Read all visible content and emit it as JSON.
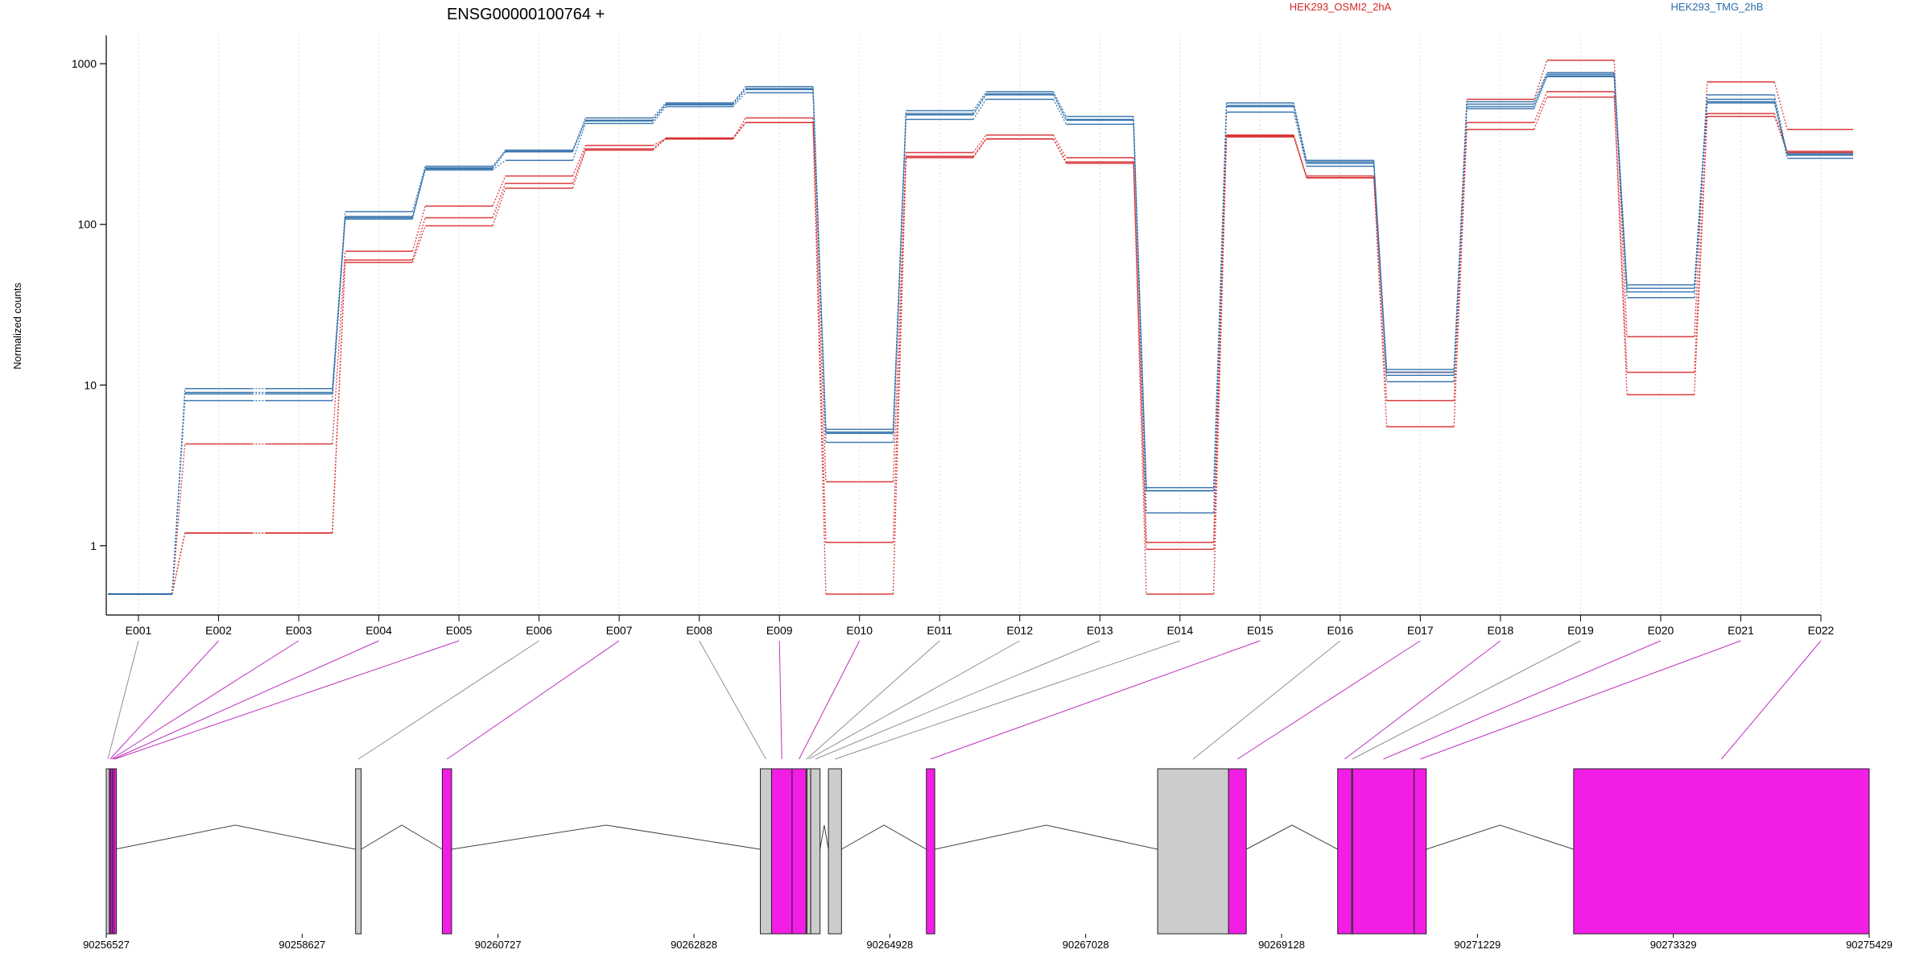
{
  "chart_data": {
    "type": "line",
    "title": "ENSG00000100764 +",
    "ylabel": "Normalized counts",
    "yscale": "log",
    "ylim": [
      0.5,
      1500
    ],
    "yticks": [
      1,
      10,
      100,
      1000
    ],
    "ytick_labels": [
      "1",
      "10",
      "100",
      "1000"
    ],
    "grid": "vertical-dotted",
    "legend_placement": "top",
    "categories": [
      "E001",
      "E002",
      "E003",
      "E004",
      "E005",
      "E006",
      "E007",
      "E008",
      "E009",
      "E010",
      "E011",
      "E012",
      "E013",
      "E014",
      "E015",
      "E016",
      "E017",
      "E018",
      "E019",
      "E020",
      "E021",
      "E022"
    ],
    "groups": [
      {
        "name": "HEK293_OSMI2_2hA",
        "color": "#d62728"
      },
      {
        "name": "HEK293_TMG_2hB",
        "color": "#2b6ca8"
      }
    ],
    "series": [
      {
        "group": 0,
        "values": [
          0.5,
          4.3,
          4.3,
          68,
          130,
          200,
          310,
          340,
          460,
          2.5,
          280,
          360,
          260,
          1.05,
          360,
          200,
          12,
          600,
          1050,
          20,
          770,
          390
        ]
      },
      {
        "group": 0,
        "values": [
          0.5,
          1.2,
          1.2,
          60,
          110,
          180,
          295,
          345,
          430,
          1.05,
          265,
          340,
          245,
          0.95,
          355,
          195,
          8,
          430,
          670,
          12,
          490,
          285
        ]
      },
      {
        "group": 0,
        "values": [
          0.5,
          1.2,
          1.2,
          58,
          98,
          168,
          290,
          340,
          430,
          0.5,
          260,
          340,
          240,
          0.5,
          350,
          195,
          5.5,
          390,
          620,
          8.7,
          470,
          280
        ]
      },
      {
        "group": 1,
        "values": [
          0.5,
          9.5,
          9.5,
          120,
          230,
          290,
          460,
          570,
          720,
          5.3,
          510,
          670,
          470,
          2.2,
          570,
          250,
          12.5,
          580,
          880,
          42,
          640,
          270
        ]
      },
      {
        "group": 1,
        "values": [
          0.5,
          9.0,
          9.0,
          110,
          225,
          285,
          445,
          560,
          700,
          5.0,
          490,
          650,
          450,
          2.3,
          550,
          245,
          12,
          560,
          860,
          38,
          600,
          270
        ]
      },
      {
        "group": 1,
        "values": [
          0.5,
          8.8,
          8.8,
          108,
          222,
          283,
          440,
          555,
          690,
          4.4,
          480,
          640,
          445,
          1.6,
          540,
          240,
          10.5,
          540,
          840,
          35,
          580,
          258
        ]
      },
      {
        "group": 1,
        "values": [
          0.5,
          8.0,
          8.0,
          112,
          218,
          250,
          425,
          540,
          660,
          5.1,
          450,
          600,
          420,
          2.2,
          500,
          230,
          11.5,
          525,
          830,
          40,
          570,
          275
        ]
      }
    ],
    "gene_model": {
      "genomic_ticks": [
        "90256527",
        "90258627",
        "90260727",
        "90262828",
        "90264928",
        "90267028",
        "90269128",
        "90271229",
        "90273329",
        "90275429"
      ],
      "genomic_range": [
        90256527,
        90275429
      ],
      "exon_colors": {
        "tested": "#f21ee5",
        "other": "#cccccc"
      },
      "exons": [
        {
          "id": "E001",
          "start": 90256527,
          "end": 90256560,
          "tested": false
        },
        {
          "id": "E002",
          "start": 90256560,
          "end": 90256575,
          "tested": true
        },
        {
          "id": "E003",
          "start": 90256575,
          "end": 90256592,
          "tested": true
        },
        {
          "id": "E004",
          "start": 90256592,
          "end": 90256610,
          "tested": true
        },
        {
          "id": "E005",
          "start": 90256610,
          "end": 90256620,
          "tested": true
        },
        {
          "id": "E006",
          "start": 90259200,
          "end": 90259260,
          "tested": false
        },
        {
          "id": "E007",
          "start": 90260130,
          "end": 90260230,
          "tested": true
        },
        {
          "id": "E008",
          "start": 90263540,
          "end": 90263660,
          "tested": false
        },
        {
          "id": "E009",
          "start": 90263660,
          "end": 90263880,
          "tested": true
        },
        {
          "id": "E010",
          "start": 90263880,
          "end": 90264030,
          "tested": true
        },
        {
          "id": "E011",
          "start": 90264030,
          "end": 90264040,
          "tested": false
        },
        {
          "id": "E012",
          "start": 90264040,
          "end": 90264080,
          "tested": false
        },
        {
          "id": "E013",
          "start": 90264080,
          "end": 90264180,
          "tested": false
        },
        {
          "id": "E014",
          "start": 90264270,
          "end": 90264410,
          "tested": false
        },
        {
          "id": "E015",
          "start": 90265320,
          "end": 90265410,
          "tested": true
        },
        {
          "id": "E016",
          "start": 90267800,
          "end": 90268560,
          "tested": false
        },
        {
          "id": "E017",
          "start": 90268560,
          "end": 90268750,
          "tested": true
        },
        {
          "id": "E018",
          "start": 90269730,
          "end": 90269880,
          "tested": true
        },
        {
          "id": "E019",
          "start": 90269880,
          "end": 90269890,
          "tested": false
        },
        {
          "id": "E020",
          "start": 90269890,
          "end": 90270550,
          "tested": true
        },
        {
          "id": "E021",
          "start": 90270550,
          "end": 90270680,
          "tested": true
        },
        {
          "id": "E022",
          "start": 90272260,
          "end": 90275429,
          "tested": true
        }
      ],
      "intron_peaks": [
        [
          90256620,
          90259200
        ],
        [
          90259260,
          90260130
        ],
        [
          90260230,
          90263540
        ],
        [
          90264180,
          90264270
        ],
        [
          90264410,
          90265320
        ],
        [
          90265410,
          90267800
        ],
        [
          90268750,
          90269730
        ],
        [
          90270680,
          90272260
        ]
      ]
    }
  }
}
